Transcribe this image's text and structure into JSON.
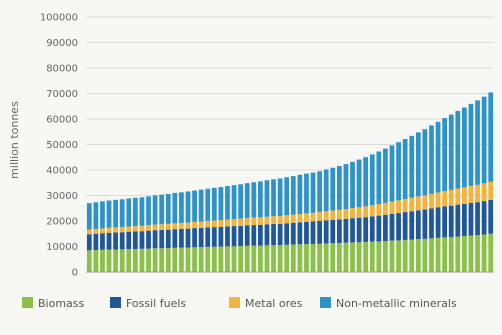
{
  "chart_data": {
    "type": "bar",
    "stacked": true,
    "title": "",
    "xlabel": "",
    "ylabel": "million tonnes",
    "ylim": [
      0,
      100000
    ],
    "yticks": [
      0,
      10000,
      20000,
      30000,
      40000,
      50000,
      60000,
      70000,
      80000,
      90000,
      100000
    ],
    "grid": true,
    "legend_position": "bottom",
    "series": [
      {
        "name": "Biomass",
        "color": "#8cc04b",
        "values": [
          8500,
          8600,
          8700,
          8800,
          8800,
          8900,
          9000,
          9000,
          9100,
          9200,
          9300,
          9300,
          9400,
          9500,
          9600,
          9600,
          9700,
          9800,
          9900,
          9900,
          10000,
          10100,
          10100,
          10200,
          10300,
          10400,
          10400,
          10500,
          10600,
          10600,
          10700,
          10800,
          10900,
          11000,
          11000,
          11100,
          11200,
          11300,
          11400,
          11500,
          11600,
          11700,
          11800,
          11900,
          12000,
          12100,
          12300,
          12400,
          12600,
          12700,
          12900,
          13000,
          13200,
          13400,
          13600,
          13700,
          13900,
          14100,
          14300,
          14500,
          14700,
          15000
        ]
      },
      {
        "name": "Fossil fuels",
        "color": "#1f5797",
        "values": [
          6300,
          6400,
          6500,
          6600,
          6700,
          6700,
          6800,
          6900,
          6900,
          7000,
          7100,
          7200,
          7200,
          7300,
          7300,
          7400,
          7500,
          7500,
          7600,
          7700,
          7700,
          7800,
          7900,
          7900,
          8000,
          8000,
          8100,
          8200,
          8200,
          8300,
          8400,
          8500,
          8600,
          8700,
          8800,
          8900,
          9000,
          9100,
          9200,
          9300,
          9500,
          9600,
          9700,
          9900,
          10100,
          10300,
          10500,
          10700,
          10900,
          11100,
          11300,
          11500,
          11700,
          11900,
          12100,
          12300,
          12500,
          12600,
          12800,
          12900,
          13100,
          13300
        ]
      },
      {
        "name": "Metal ores",
        "color": "#f0b43f",
        "values": [
          1800,
          1850,
          1900,
          1950,
          2000,
          2000,
          2050,
          2100,
          2100,
          2150,
          2200,
          2250,
          2300,
          2300,
          2350,
          2400,
          2450,
          2500,
          2550,
          2600,
          2650,
          2700,
          2750,
          2800,
          2850,
          2900,
          2950,
          3000,
          3050,
          3100,
          3150,
          3200,
          3250,
          3300,
          3400,
          3500,
          3600,
          3700,
          3800,
          3900,
          4000,
          4100,
          4250,
          4400,
          4550,
          4700,
          4850,
          5000,
          5150,
          5300,
          5450,
          5600,
          5750,
          5900,
          6050,
          6200,
          6350,
          6500,
          6650,
          6800,
          6950,
          7100
        ]
      },
      {
        "name": "Non-metallic minerals",
        "color": "#2f93c8",
        "values": [
          10400,
          10500,
          10600,
          10700,
          10800,
          10900,
          11000,
          11100,
          11200,
          11300,
          11500,
          11600,
          11700,
          11900,
          12000,
          12200,
          12300,
          12500,
          12600,
          12800,
          13000,
          13100,
          13300,
          13500,
          13700,
          13900,
          14100,
          14300,
          14500,
          14700,
          14900,
          15100,
          15400,
          15600,
          15800,
          16000,
          16400,
          16800,
          17200,
          17600,
          18100,
          18700,
          19300,
          19900,
          20600,
          21300,
          22000,
          22800,
          23500,
          24300,
          25100,
          25900,
          26800,
          27700,
          28600,
          29500,
          30400,
          31300,
          32200,
          33100,
          34000,
          35000
        ]
      }
    ]
  }
}
